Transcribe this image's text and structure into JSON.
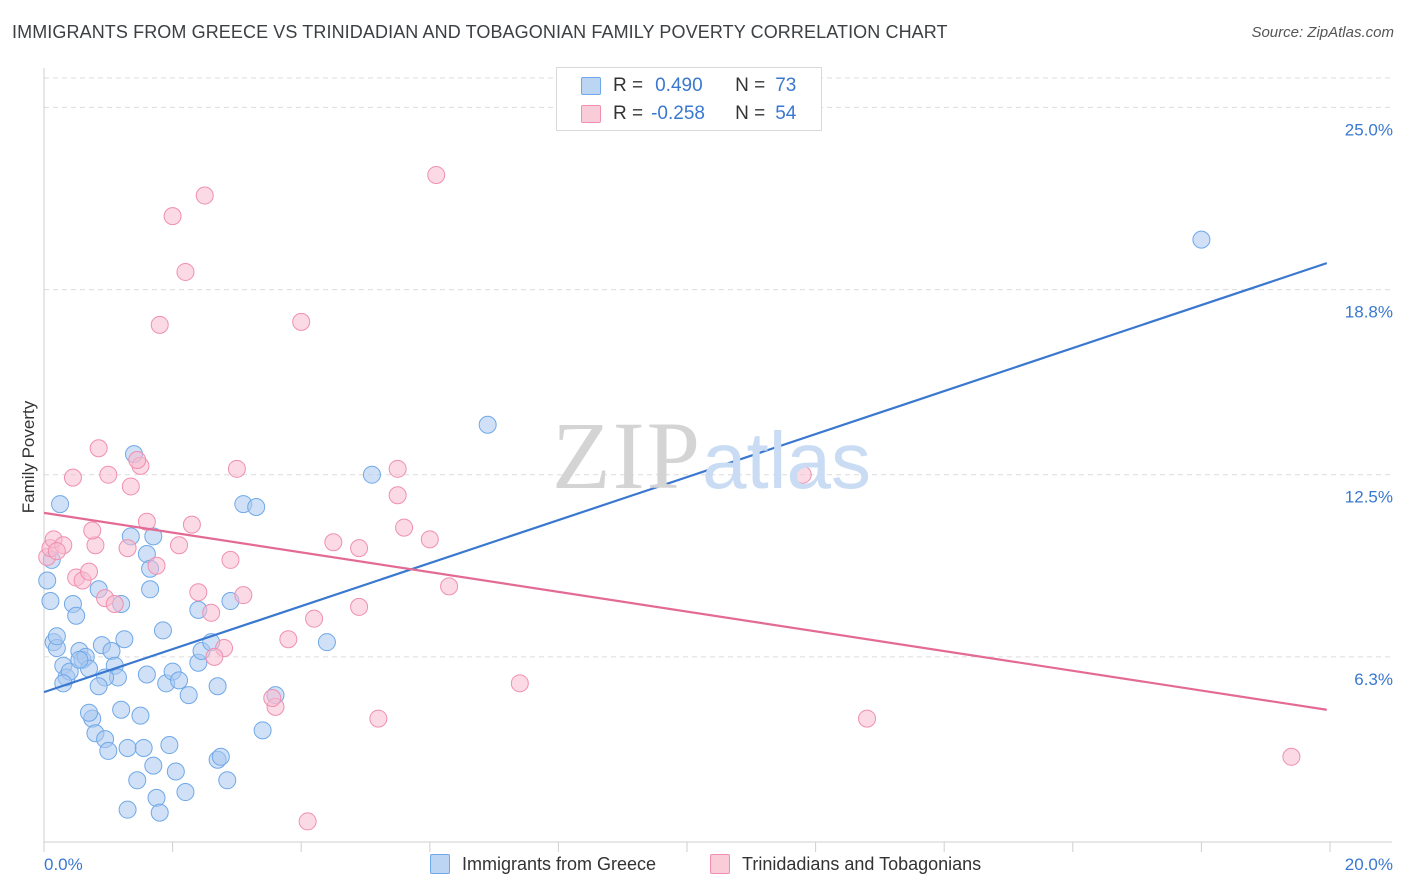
{
  "chart_data": {
    "type": "scatter",
    "title": "IMMIGRANTS FROM GREECE VS TRINIDADIAN AND TOBAGONIAN FAMILY POVERTY CORRELATION CHART",
    "source": "Source: ZipAtlas.com",
    "xlabel": "",
    "ylabel": "Family Poverty",
    "xlim": [
      0,
      20
    ],
    "ylim": [
      0,
      26
    ],
    "x_tick_labels": [
      "0.0%",
      "20.0%"
    ],
    "y_ticks": [
      6.3,
      12.5,
      18.8,
      25.0
    ],
    "y_tick_labels": [
      "6.3%",
      "12.5%",
      "18.8%",
      "25.0%"
    ],
    "grid": "horizontal dashed",
    "watermark": {
      "zip": "ZIP",
      "atlas": "atlas"
    },
    "legend": {
      "rows": [
        {
          "r_label": "R =",
          "r_value": "0.490",
          "n_label": "N =",
          "n_value": "73"
        },
        {
          "r_label": "R =",
          "r_value": "-0.258",
          "n_label": "N =",
          "n_value": "54"
        }
      ]
    },
    "series": [
      {
        "name": "Immigrants from Greece",
        "color": "#6fa8e8",
        "fill": "#a9c9f0",
        "line_color": "#3a78d0",
        "trend": {
          "x": [
            0,
            19.95
          ],
          "y": [
            5.1,
            19.7
          ]
        },
        "points": [
          [
            0.05,
            8.9
          ],
          [
            0.1,
            8.2
          ],
          [
            0.15,
            6.8
          ],
          [
            0.2,
            6.6
          ],
          [
            0.25,
            11.5
          ],
          [
            0.3,
            6.0
          ],
          [
            0.35,
            5.6
          ],
          [
            0.4,
            5.8
          ],
          [
            0.45,
            8.1
          ],
          [
            0.5,
            7.7
          ],
          [
            0.55,
            6.5
          ],
          [
            0.6,
            6.2
          ],
          [
            0.65,
            6.3
          ],
          [
            0.7,
            5.9
          ],
          [
            0.75,
            4.2
          ],
          [
            0.8,
            3.7
          ],
          [
            0.85,
            8.6
          ],
          [
            0.9,
            6.7
          ],
          [
            0.95,
            3.5
          ],
          [
            1.0,
            3.1
          ],
          [
            1.05,
            6.5
          ],
          [
            1.1,
            6.0
          ],
          [
            1.15,
            5.6
          ],
          [
            1.2,
            8.1
          ],
          [
            1.25,
            6.9
          ],
          [
            1.3,
            3.2
          ],
          [
            1.35,
            10.4
          ],
          [
            1.4,
            13.2
          ],
          [
            1.45,
            2.1
          ],
          [
            1.5,
            4.3
          ],
          [
            1.55,
            3.2
          ],
          [
            1.6,
            9.8
          ],
          [
            1.65,
            8.6
          ],
          [
            1.7,
            2.6
          ],
          [
            1.75,
            1.5
          ],
          [
            1.8,
            1.0
          ],
          [
            1.85,
            7.2
          ],
          [
            1.9,
            5.4
          ],
          [
            1.95,
            3.3
          ],
          [
            2.0,
            5.8
          ],
          [
            2.05,
            2.4
          ],
          [
            2.1,
            5.5
          ],
          [
            2.2,
            1.7
          ],
          [
            2.25,
            5.0
          ],
          [
            2.4,
            6.1
          ],
          [
            2.45,
            6.5
          ],
          [
            2.6,
            6.8
          ],
          [
            2.7,
            2.8
          ],
          [
            2.75,
            2.9
          ],
          [
            2.9,
            8.2
          ],
          [
            3.1,
            11.5
          ],
          [
            3.3,
            11.4
          ],
          [
            3.4,
            3.8
          ],
          [
            3.6,
            5.0
          ],
          [
            4.4,
            6.8
          ],
          [
            5.1,
            12.5
          ],
          [
            6.9,
            14.2
          ],
          [
            18.0,
            20.5
          ],
          [
            0.12,
            9.6
          ],
          [
            0.2,
            7.0
          ],
          [
            0.3,
            5.4
          ],
          [
            0.55,
            6.2
          ],
          [
            0.7,
            4.4
          ],
          [
            0.95,
            5.6
          ],
          [
            1.2,
            4.5
          ],
          [
            1.65,
            9.3
          ],
          [
            1.7,
            10.4
          ],
          [
            2.4,
            7.9
          ],
          [
            2.7,
            5.3
          ],
          [
            1.3,
            1.1
          ],
          [
            2.85,
            2.1
          ],
          [
            1.6,
            5.7
          ],
          [
            0.85,
            5.3
          ]
        ]
      },
      {
        "name": "Trinidadians and Tobagonians",
        "color": "#f08fb0",
        "fill": "#f8bccf",
        "line_color": "#e46a96",
        "trend": {
          "x": [
            0,
            19.95
          ],
          "y": [
            11.2,
            4.5
          ]
        },
        "points": [
          [
            0.05,
            9.7
          ],
          [
            0.1,
            10.0
          ],
          [
            0.15,
            10.3
          ],
          [
            0.3,
            10.1
          ],
          [
            0.45,
            12.4
          ],
          [
            0.5,
            9.0
          ],
          [
            0.6,
            8.9
          ],
          [
            0.7,
            9.2
          ],
          [
            0.8,
            10.1
          ],
          [
            0.85,
            13.4
          ],
          [
            0.95,
            8.3
          ],
          [
            1.1,
            8.1
          ],
          [
            1.3,
            10.0
          ],
          [
            1.35,
            12.1
          ],
          [
            1.5,
            12.8
          ],
          [
            1.6,
            10.9
          ],
          [
            1.75,
            9.4
          ],
          [
            1.8,
            17.6
          ],
          [
            2.0,
            21.3
          ],
          [
            2.1,
            10.1
          ],
          [
            2.2,
            19.4
          ],
          [
            2.3,
            10.8
          ],
          [
            2.4,
            8.5
          ],
          [
            2.5,
            22.0
          ],
          [
            2.6,
            7.8
          ],
          [
            2.8,
            6.6
          ],
          [
            2.9,
            9.6
          ],
          [
            3.0,
            12.7
          ],
          [
            3.1,
            8.4
          ],
          [
            3.6,
            4.6
          ],
          [
            3.8,
            6.9
          ],
          [
            4.0,
            17.7
          ],
          [
            4.2,
            7.6
          ],
          [
            4.5,
            10.2
          ],
          [
            4.9,
            8.0
          ],
          [
            5.2,
            4.2
          ],
          [
            5.5,
            11.8
          ],
          [
            5.6,
            10.7
          ],
          [
            6.0,
            10.3
          ],
          [
            6.3,
            8.7
          ],
          [
            5.5,
            12.7
          ],
          [
            7.4,
            5.4
          ],
          [
            12.8,
            4.2
          ],
          [
            19.4,
            2.9
          ],
          [
            6.1,
            22.7
          ],
          [
            4.1,
            0.7
          ],
          [
            1.45,
            13.0
          ],
          [
            0.2,
            9.9
          ],
          [
            0.75,
            10.6
          ],
          [
            2.65,
            6.3
          ],
          [
            4.9,
            10.0
          ],
          [
            3.55,
            4.9
          ],
          [
            1.0,
            12.5
          ],
          [
            11.8,
            12.5
          ]
        ]
      }
    ]
  }
}
